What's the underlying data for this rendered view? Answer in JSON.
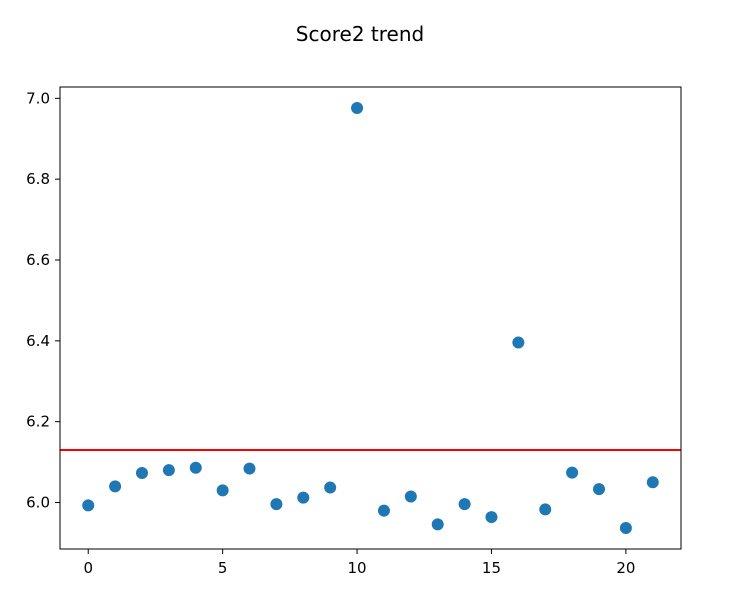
{
  "chart_data": {
    "type": "scatter",
    "title": "Score2 trend",
    "xlabel": "",
    "ylabel": "",
    "x": [
      0,
      1,
      2,
      3,
      4,
      5,
      6,
      7,
      8,
      9,
      10,
      11,
      12,
      13,
      14,
      15,
      16,
      17,
      18,
      19,
      20,
      21
    ],
    "series": [
      {
        "values": [
          5.993,
          6.04,
          6.073,
          6.08,
          6.086,
          6.03,
          6.084,
          5.996,
          6.012,
          6.037,
          6.976,
          5.98,
          6.015,
          5.946,
          5.996,
          5.964,
          6.396,
          5.983,
          6.074,
          6.033,
          5.937,
          6.05
        ],
        "color": "#1f77b4"
      }
    ],
    "reference_line": {
      "y": 6.13,
      "color": "#ff0000"
    },
    "xlim": [
      -1.05,
      22.05
    ],
    "ylim": [
      5.885,
      7.028
    ],
    "xticks": [
      0,
      5,
      10,
      15,
      20
    ],
    "yticks": [
      6.0,
      6.2,
      6.4,
      6.6,
      6.8,
      7.0
    ],
    "ytick_labels": [
      "6.0",
      "6.2",
      "6.4",
      "6.6",
      "6.8",
      "7.0"
    ],
    "grid": false
  }
}
